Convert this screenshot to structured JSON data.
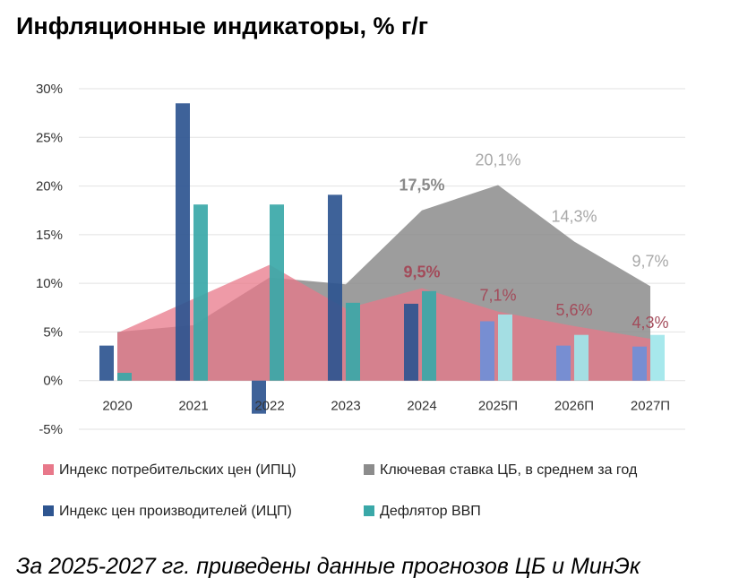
{
  "title": "Инфляционные индикаторы, % г/г",
  "footnote": "За 2025-2027 гг. приведены данные прогнозов ЦБ и МинЭк",
  "chart_data": {
    "type": "bar",
    "categories": [
      "2020",
      "2021",
      "2022",
      "2023",
      "2024",
      "2025П",
      "2026П",
      "2027П"
    ],
    "forecast_from_index": 5,
    "ylim": [
      -5,
      30
    ],
    "yticks": [
      -5,
      0,
      5,
      10,
      15,
      20,
      25,
      30
    ],
    "ytick_labels": [
      "-5%",
      "0%",
      "5%",
      "10%",
      "15%",
      "20%",
      "25%",
      "30%"
    ],
    "grid": true,
    "legend_position": "bottom",
    "series": [
      {
        "name": "Индекс потребительских цен (ИПЦ)",
        "kind": "area",
        "color": "#e8788a",
        "values": [
          4.9,
          8.4,
          11.9,
          7.4,
          9.5,
          7.1,
          5.6,
          4.3
        ]
      },
      {
        "name": "Ключевая ставка ЦБ, в среднем за год",
        "kind": "area",
        "color": "#8c8c8c",
        "values": [
          5.0,
          5.7,
          10.6,
          9.9,
          17.5,
          20.1,
          14.3,
          9.7
        ]
      },
      {
        "name": "Индекс цен производителей (ИЦП)",
        "kind": "bar",
        "color": "#2e5590",
        "forecast_color": "#6f8fd8",
        "values": [
          3.6,
          28.5,
          -3.4,
          19.1,
          7.9,
          6.1,
          3.6,
          3.5
        ]
      },
      {
        "name": "Дефлятор ВВП",
        "kind": "bar",
        "color": "#3aa8a8",
        "forecast_color": "#9fe6ea",
        "values": [
          0.8,
          18.1,
          18.1,
          8.0,
          9.2,
          6.8,
          4.7,
          4.7
        ]
      }
    ],
    "annotations": [
      {
        "series": 1,
        "index": 4,
        "text": "17,5%",
        "bold": true
      },
      {
        "series": 1,
        "index": 5,
        "text": "20,1%",
        "bold": false
      },
      {
        "series": 1,
        "index": 6,
        "text": "14,3%",
        "bold": false
      },
      {
        "series": 1,
        "index": 7,
        "text": "9,7%",
        "bold": false
      },
      {
        "series": 0,
        "index": 4,
        "text": "9,5%",
        "bold": true
      },
      {
        "series": 0,
        "index": 5,
        "text": "7,1%",
        "bold": false
      },
      {
        "series": 0,
        "index": 6,
        "text": "5,6%",
        "bold": false
      },
      {
        "series": 0,
        "index": 7,
        "text": "4,3%",
        "bold": false
      }
    ],
    "legend_order": [
      0,
      1,
      2,
      3
    ]
  }
}
